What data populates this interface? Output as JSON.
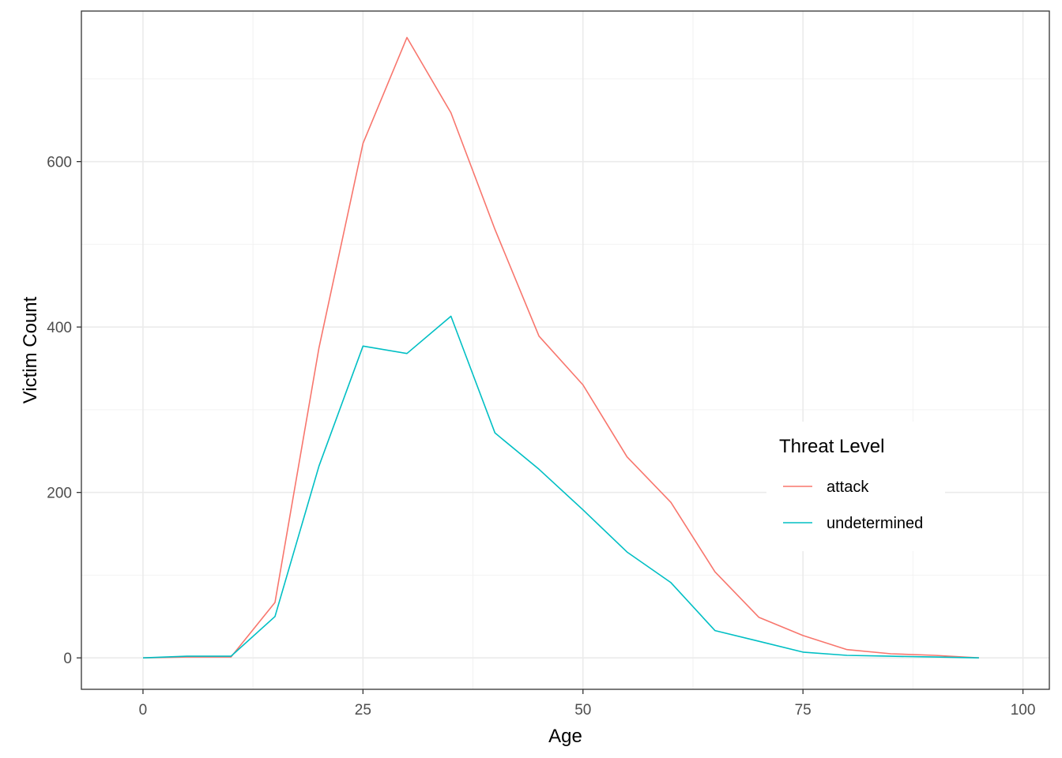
{
  "chart_data": {
    "type": "line",
    "title": "",
    "xlabel": "Age",
    "ylabel": "Victim Count",
    "xlim": [
      -7,
      103
    ],
    "ylim": [
      -38,
      782
    ],
    "x_ticks": [
      0,
      25,
      50,
      75,
      100
    ],
    "x_minor_ticks": [
      12.5,
      37.5,
      62.5,
      87.5
    ],
    "y_ticks": [
      0,
      200,
      400,
      600
    ],
    "y_minor_ticks": [
      100,
      300,
      500,
      700
    ],
    "grid": true,
    "legend": {
      "title": "Threat Level",
      "position": "right-inside"
    },
    "series": [
      {
        "name": "attack",
        "color": "#F8766D",
        "x": [
          0,
          5,
          10,
          15,
          20,
          25,
          30,
          35,
          40,
          45,
          50,
          55,
          60,
          65,
          70,
          75,
          80,
          85,
          90,
          95
        ],
        "y": [
          0,
          1,
          1,
          67,
          375,
          622,
          750,
          659,
          518,
          389,
          330,
          243,
          188,
          104,
          49,
          27,
          10,
          5,
          3,
          0
        ]
      },
      {
        "name": "undetermined",
        "color": "#00BFC4",
        "x": [
          0,
          5,
          10,
          15,
          20,
          25,
          30,
          35,
          40,
          45,
          50,
          55,
          60,
          65,
          70,
          75,
          80,
          85,
          90,
          95
        ],
        "y": [
          0,
          2,
          2,
          50,
          232,
          377,
          368,
          413,
          272,
          228,
          179,
          128,
          91,
          33,
          20,
          7,
          3,
          2,
          1,
          0
        ]
      }
    ]
  }
}
